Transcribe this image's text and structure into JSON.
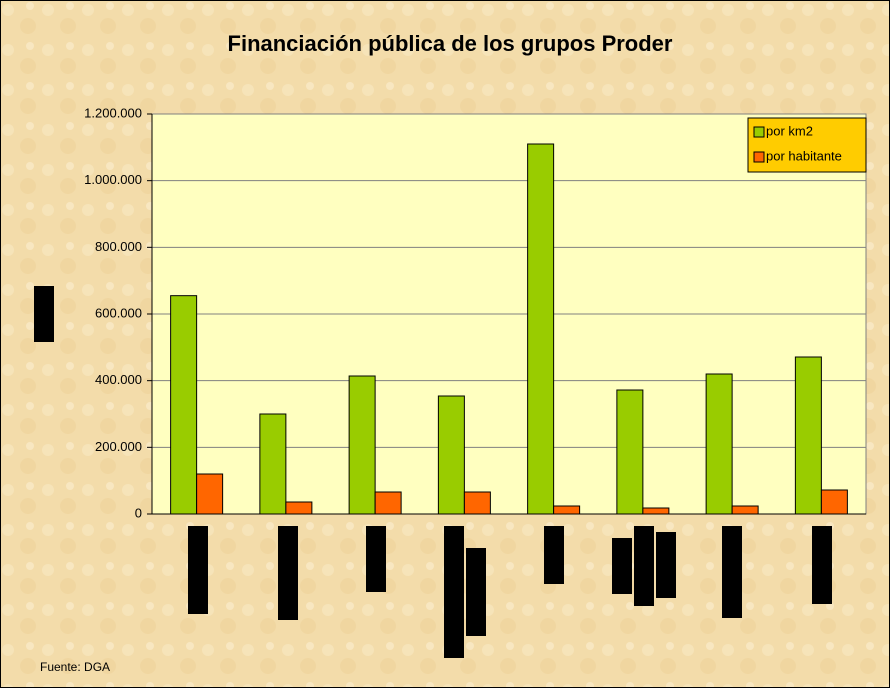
{
  "chart_data": {
    "type": "bar",
    "title": "Financiación pública de los grupos Proder",
    "categories": [
      null,
      null,
      null,
      null,
      null,
      null,
      null,
      null
    ],
    "series": [
      {
        "name": "por km2",
        "color": "#99cc00",
        "values": [
          655000,
          300000,
          414000,
          354000,
          1110000,
          372000,
          420000,
          471000
        ]
      },
      {
        "name": "por habitante",
        "color": "#ff6600",
        "values": [
          120000,
          36000,
          66000,
          66000,
          24000,
          18000,
          24000,
          72000
        ]
      }
    ],
    "ylim": [
      0,
      1200000
    ],
    "yticks": [
      0,
      {
        "value": 200000,
        "label": "200.000"
      },
      {
        "value": 400000,
        "label": "400.000"
      },
      {
        "value": 600000,
        "label": "600.000"
      },
      {
        "value": 800000,
        "label": "800.000"
      },
      {
        "value": 1000000,
        "label": "1.000.000"
      },
      {
        "value": 1200000,
        "label": "1.200.000"
      }
    ],
    "grid": true,
    "legend": "top-right",
    "source": "Fuente: DGA"
  }
}
